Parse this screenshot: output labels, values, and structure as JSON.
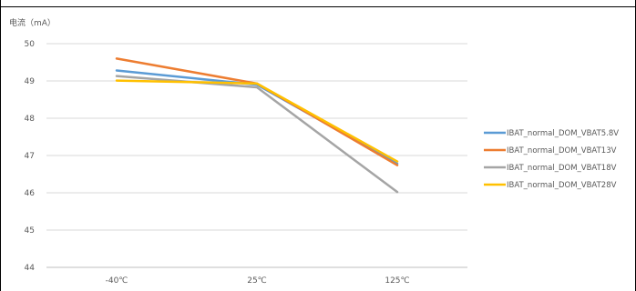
{
  "chart_data": {
    "type": "line",
    "ylabel": "电流（mA）",
    "xlabel": "",
    "categories": [
      "-40℃",
      "25℃",
      "125℃"
    ],
    "ylim": [
      44,
      50
    ],
    "yticks": [
      44,
      45,
      46,
      47,
      48,
      49,
      50
    ],
    "grid": true,
    "legend_position": "right",
    "series": [
      {
        "name": "IBAT_normal_DOM_VBAT5.8V",
        "values": [
          49.28,
          48.9,
          46.78
        ],
        "color": "#5b9bd5"
      },
      {
        "name": "IBAT_normal_DOM_VBAT13V",
        "values": [
          49.6,
          48.93,
          46.74
        ],
        "color": "#ed7d31"
      },
      {
        "name": "IBAT_normal_DOM_VBAT18V",
        "values": [
          49.13,
          48.83,
          46.02
        ],
        "color": "#a5a5a5"
      },
      {
        "name": "IBAT_normal_DOM_VBAT28V",
        "values": [
          49.01,
          48.93,
          46.84
        ],
        "color": "#ffc000"
      }
    ]
  }
}
